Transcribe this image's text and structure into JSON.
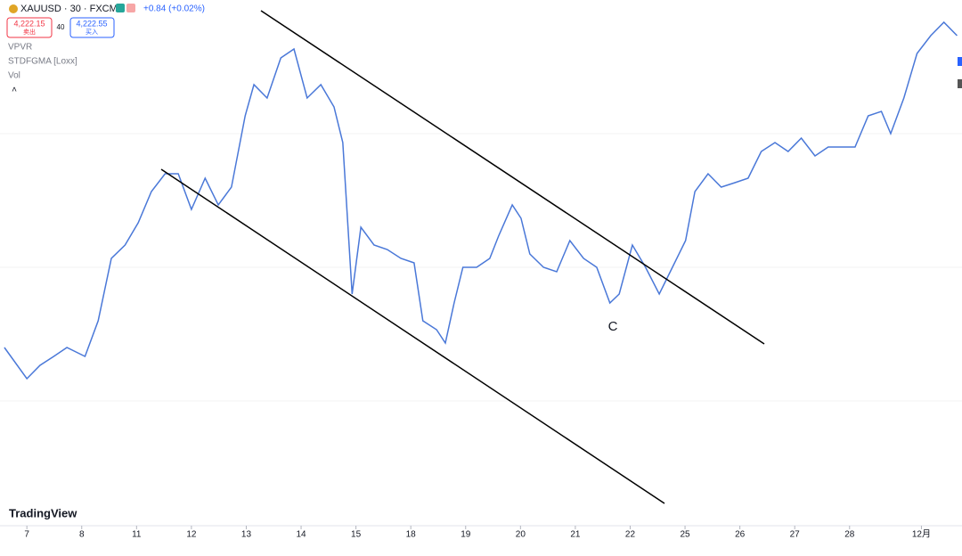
{
  "header": {
    "symbol": "XAUUSD · 30 · FXCM",
    "change": "+0.84 (+0.02%)",
    "sell_price": "4,222.15",
    "sell_label": "卖出",
    "spread": "40",
    "buy_price": "4,222.55",
    "buy_label": "买入"
  },
  "indicators": [
    "VPVR",
    "STDFGMA [Loxx]",
    "Vol"
  ],
  "logo": "TradingView",
  "annotation": "C",
  "chart_data": {
    "type": "line",
    "color": "#4a78d8",
    "x": [
      -0.41,
      0,
      0.24,
      0.49,
      0.73,
      1.06,
      1.3,
      1.54,
      1.79,
      2.03,
      2.27,
      2.52,
      2.76,
      3,
      3.25,
      3.49,
      3.73,
      3.98,
      4.14,
      4.38,
      4.63,
      4.87,
      5.11,
      5.36,
      5.6,
      5.76,
      5.93,
      6.09,
      6.33,
      6.57,
      6.82,
      7.06,
      7.22,
      7.47,
      7.63,
      7.79,
      7.95,
      8.2,
      8.44,
      8.6,
      8.85,
      9.01,
      9.17,
      9.42,
      9.66,
      9.9,
      10.15,
      10.39,
      10.63,
      10.8,
      11.04,
      11.28,
      11.53,
      11.77,
      12.01,
      12.18,
      12.42,
      12.66,
      12.91,
      13.15,
      13.39,
      13.64,
      13.88,
      14.12,
      14.37,
      14.61,
      14.85,
      15.1,
      15.34,
      15.58,
      15.75,
      15.99,
      16.23,
      16.48,
      16.72,
      16.96
    ],
    "values": [
      4008,
      3987,
      3996,
      4002,
      4008,
      4002,
      4026,
      4068,
      4077,
      4092,
      4113,
      4125,
      4125,
      4101,
      4122,
      4104,
      4116,
      4164,
      4185,
      4176,
      4203,
      4209,
      4176,
      4185,
      4170,
      4146,
      4044,
      4089,
      4077,
      4074,
      4068,
      4065,
      4026,
      4020,
      4011,
      4038,
      4062,
      4062,
      4068,
      4083,
      4104,
      4095,
      4071,
      4062,
      4059,
      4080,
      4068,
      4062,
      4038,
      4044,
      4077,
      4062,
      4044,
      4062,
      4080,
      4113,
      4125,
      4116,
      4119,
      4122,
      4140,
      4146,
      4140,
      4149,
      4137,
      4143,
      4143,
      4143,
      4164,
      4167,
      4152,
      4176,
      4206,
      4218,
      4227,
      4218
    ],
    "xlim": [
      -0.49,
      17.05
    ],
    "ylim": [
      3888,
      4242
    ],
    "xticks": [
      {
        "value": 0,
        "label": "7"
      },
      {
        "value": 1,
        "label": "8"
      },
      {
        "value": 2,
        "label": "11"
      },
      {
        "value": 3,
        "label": "12"
      },
      {
        "value": 4,
        "label": "13"
      },
      {
        "value": 5,
        "label": "14"
      },
      {
        "value": 6,
        "label": "15"
      },
      {
        "value": 7,
        "label": "18"
      },
      {
        "value": 8,
        "label": "19"
      },
      {
        "value": 9,
        "label": "20"
      },
      {
        "value": 10,
        "label": "21"
      },
      {
        "value": 11,
        "label": "22"
      },
      {
        "value": 12,
        "label": "25"
      },
      {
        "value": 13,
        "label": "26"
      },
      {
        "value": 14,
        "label": "27"
      },
      {
        "value": 15,
        "label": "28"
      },
      {
        "value": 16.31,
        "label": "12月"
      }
    ]
  }
}
